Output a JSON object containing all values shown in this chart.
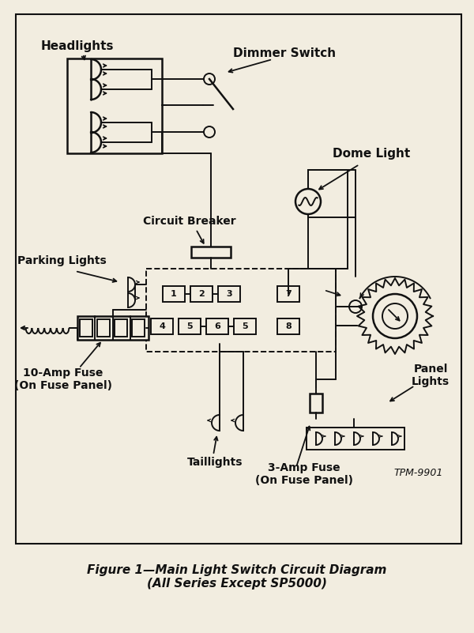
{
  "title": "Figure 1—Main Light Switch Circuit Diagram\n(All Series Except SP5000)",
  "bg_color": "#f2ede0",
  "line_color": "#111111",
  "figsize": [
    6.0,
    8.01
  ],
  "dpi": 100,
  "labels": {
    "headlights": "Headlights",
    "dimmer_switch": "Dimmer Switch",
    "dome_light": "Dome Light",
    "circuit_breaker": "Circuit Breaker",
    "parking_lights": "Parking Lights",
    "fuse_10amp": "10-Amp Fuse\n(On Fuse Panel)",
    "taillights": "Taillights",
    "fuse_3amp": "3-Amp Fuse\n(On Fuse Panel)",
    "panel_lights": "Panel\nLights",
    "tpm": "TPM-9901"
  }
}
